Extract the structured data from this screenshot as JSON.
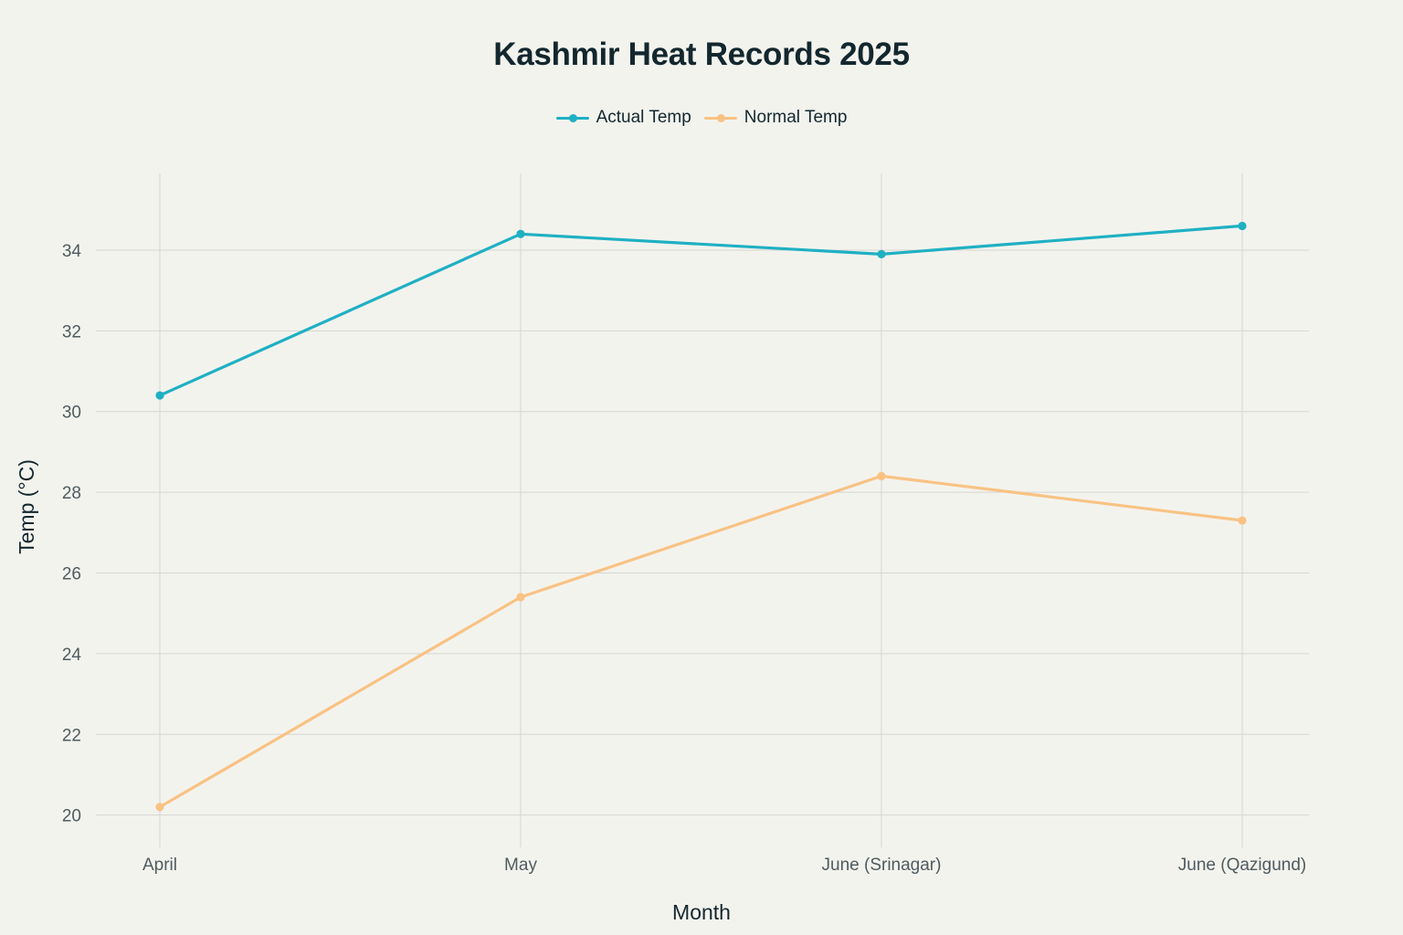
{
  "chart_data": {
    "type": "line",
    "title": "Kashmir Heat Records 2025",
    "xlabel": "Month",
    "ylabel": "Temp (°C)",
    "categories": [
      "April",
      "May",
      "June (Srinagar)",
      "June (Qazigund)"
    ],
    "series": [
      {
        "name": "Actual Temp",
        "color": "#1fb0c3",
        "values": [
          30.4,
          34.4,
          33.9,
          34.6
        ]
      },
      {
        "name": "Normal Temp",
        "color": "#f9c283",
        "values": [
          20.2,
          25.4,
          28.4,
          27.3
        ]
      }
    ],
    "ylim": [
      19.2,
      35.9
    ],
    "yticks": [
      20,
      22,
      24,
      26,
      28,
      30,
      32,
      34
    ],
    "grid": true,
    "legend_position": "top-center"
  }
}
